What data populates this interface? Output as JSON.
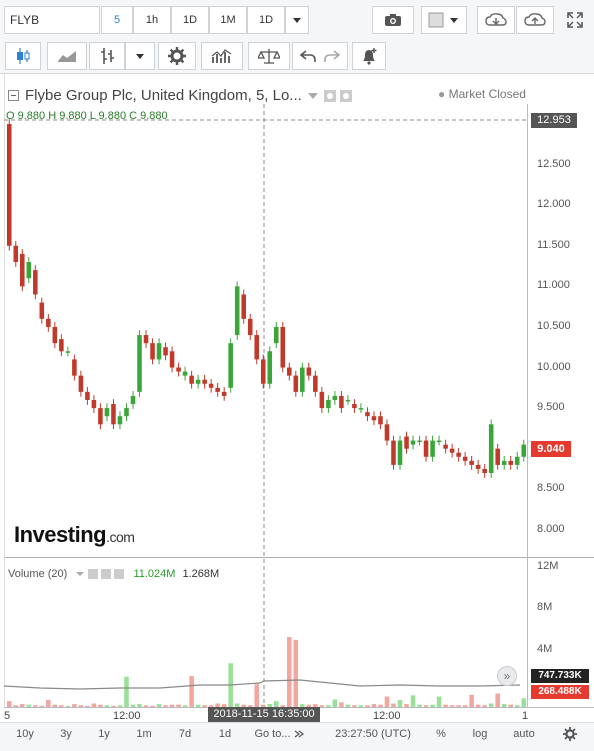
{
  "toolbar": {
    "symbol": "FLYB",
    "intervals": [
      "5",
      "1h",
      "1D",
      "1M",
      "1D"
    ],
    "active_interval": "5"
  },
  "header": {
    "title": "Flybe Group Plc, United Kingdom, 5, Lo...",
    "market_status": "Market Closed",
    "ohlc": "O 9.880  H 9.880  L 9.880  C 9.880"
  },
  "price_axis": {
    "ticks": [
      "12.500",
      "12.000",
      "11.500",
      "11.000",
      "10.500",
      "10.000",
      "9.500",
      "9.000",
      "8.500",
      "8.000"
    ],
    "crosshair_price": "12.953",
    "last_price": "9.040",
    "colors": {
      "last_price_bg": "#e63a2e",
      "crosshair_bg": "#555555"
    }
  },
  "logo": {
    "text": "Investing",
    "suffix": ".com"
  },
  "volume": {
    "label": "Volume (20)",
    "value_up": "11.024M",
    "value_ma": "1.268M",
    "ticks": [
      "12M",
      "8M",
      "4M"
    ],
    "badge_up": "747.733K",
    "badge_down": "268.488K"
  },
  "time_axis": {
    "labels": [
      "5",
      "12:00",
      "12:00",
      "1"
    ],
    "crosshair_time": "2018-11-15 16:35:00"
  },
  "bottom_bar": {
    "ranges": [
      "10y",
      "3y",
      "1y",
      "1m",
      "7d",
      "1d"
    ],
    "goto": "Go to...",
    "clock": "23:27:50 (UTC)",
    "percent": "%",
    "log": "log",
    "auto": "auto"
  },
  "chart_data": {
    "type": "candlestick",
    "ylim": [
      7.85,
      13.05
    ],
    "candles": [
      [
        13.0,
        11.5
      ],
      [
        11.5,
        11.3
      ],
      [
        11.4,
        11.0
      ],
      [
        11.1,
        11.3
      ],
      [
        11.2,
        10.9
      ],
      [
        10.8,
        10.6
      ],
      [
        10.6,
        10.5
      ],
      [
        10.5,
        10.3
      ],
      [
        10.35,
        10.2
      ],
      [
        10.2,
        10.2
      ],
      [
        10.1,
        9.9
      ],
      [
        9.9,
        9.7
      ],
      [
        9.7,
        9.6
      ],
      [
        9.6,
        9.5
      ],
      [
        9.5,
        9.3
      ],
      [
        9.4,
        9.5
      ],
      [
        9.55,
        9.3
      ],
      [
        9.3,
        9.4
      ],
      [
        9.4,
        9.5
      ],
      [
        9.55,
        9.65
      ],
      [
        9.7,
        10.4
      ],
      [
        10.4,
        10.3
      ],
      [
        10.3,
        10.1
      ],
      [
        10.1,
        10.3
      ],
      [
        10.25,
        10.15
      ],
      [
        10.2,
        10.0
      ],
      [
        10.0,
        9.95
      ],
      [
        9.9,
        9.95
      ],
      [
        9.9,
        9.8
      ],
      [
        9.8,
        9.85
      ],
      [
        9.85,
        9.8
      ],
      [
        9.8,
        9.75
      ],
      [
        9.75,
        9.7
      ],
      [
        9.7,
        9.65
      ],
      [
        9.75,
        10.3
      ],
      [
        10.4,
        11.0
      ],
      [
        10.9,
        10.6
      ],
      [
        10.6,
        10.4
      ],
      [
        10.4,
        10.1
      ],
      [
        10.1,
        9.8
      ],
      [
        9.8,
        10.2
      ],
      [
        10.3,
        10.5
      ],
      [
        10.5,
        10.0
      ],
      [
        10.0,
        9.9
      ],
      [
        9.9,
        9.7
      ],
      [
        9.7,
        10.0
      ],
      [
        10.0,
        9.9
      ],
      [
        9.9,
        9.7
      ],
      [
        9.7,
        9.5
      ],
      [
        9.5,
        9.6
      ],
      [
        9.6,
        9.65
      ],
      [
        9.65,
        9.5
      ],
      [
        9.6,
        9.6
      ],
      [
        9.55,
        9.5
      ],
      [
        9.5,
        9.5
      ],
      [
        9.45,
        9.4
      ],
      [
        9.4,
        9.35
      ],
      [
        9.4,
        9.3
      ],
      [
        9.3,
        9.1
      ],
      [
        9.1,
        8.8
      ],
      [
        8.8,
        9.1
      ],
      [
        9.15,
        9.0
      ],
      [
        9.05,
        9.1
      ],
      [
        9.1,
        9.1
      ],
      [
        9.1,
        8.9
      ],
      [
        8.9,
        9.1
      ],
      [
        9.1,
        9.1
      ],
      [
        9.05,
        9.0
      ],
      [
        9.0,
        8.95
      ],
      [
        8.95,
        8.9
      ],
      [
        8.9,
        8.85
      ],
      [
        8.85,
        8.8
      ],
      [
        8.8,
        8.75
      ],
      [
        8.75,
        8.7
      ],
      [
        8.7,
        9.3
      ],
      [
        9.0,
        8.8
      ],
      [
        8.8,
        8.85
      ],
      [
        8.85,
        8.8
      ],
      [
        8.8,
        8.9
      ],
      [
        8.9,
        9.05
      ]
    ]
  }
}
